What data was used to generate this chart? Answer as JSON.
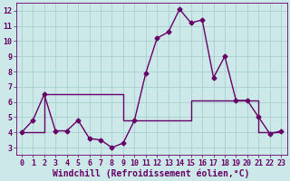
{
  "title": "",
  "xlabel": "Windchill (Refroidissement éolien,°C)",
  "ylabel": "",
  "bg_color": "#cce8e8",
  "grid_color": "#aacece",
  "line_color": "#660066",
  "xlim": [
    -0.5,
    23.5
  ],
  "ylim": [
    2.5,
    12.5
  ],
  "xticks": [
    0,
    1,
    2,
    3,
    4,
    5,
    6,
    7,
    8,
    9,
    10,
    11,
    12,
    13,
    14,
    15,
    16,
    17,
    18,
    19,
    20,
    21,
    22,
    23
  ],
  "yticks": [
    3,
    4,
    5,
    6,
    7,
    8,
    9,
    10,
    11,
    12
  ],
  "x_main": [
    0,
    1,
    2,
    3,
    4,
    5,
    6,
    7,
    8,
    9,
    10,
    11,
    12,
    13,
    14,
    15,
    16,
    17,
    18,
    19,
    20,
    21,
    22,
    23
  ],
  "y_main": [
    4.0,
    4.8,
    6.5,
    4.1,
    4.1,
    4.8,
    3.6,
    3.5,
    3.0,
    3.3,
    4.8,
    7.9,
    10.2,
    10.6,
    12.1,
    11.2,
    11.4,
    7.6,
    9.0,
    6.1,
    6.1,
    5.0,
    3.9,
    4.1
  ],
  "x_step": [
    0,
    1,
    2,
    2,
    9,
    9,
    15,
    15,
    21,
    21,
    22,
    23
  ],
  "y_step": [
    4.0,
    4.0,
    4.0,
    6.5,
    6.5,
    4.8,
    4.8,
    6.1,
    6.1,
    4.0,
    4.0,
    4.0
  ],
  "marker": "D",
  "marker_size": 2.5,
  "line_width": 1.0,
  "tick_fontsize": 6,
  "label_fontsize": 7
}
